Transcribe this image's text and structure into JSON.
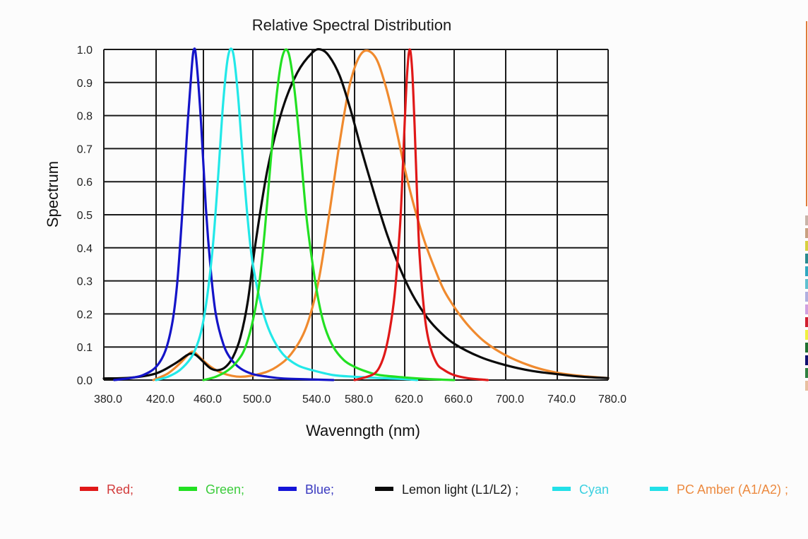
{
  "chart_data": {
    "type": "line",
    "title": "Relative Spectral Distribution",
    "xlabel": "Wavenngth (nm)",
    "ylabel": "Spectrum",
    "xlim": [
      380,
      780
    ],
    "ylim": [
      0,
      1.0
    ],
    "grid": true,
    "legend_placement": "bottom",
    "x_ticks": [
      "380.0",
      "420.0",
      "460.0",
      "500.0",
      "540.0",
      "580.0",
      "620.0",
      "660.0",
      "700.0",
      "740.0",
      "780.0"
    ],
    "y_ticks": [
      "0.0",
      "0.1",
      "0.2",
      "0.3",
      "0.4",
      "0.5",
      "0.6",
      "0.7",
      "0.8",
      "0.9",
      "1.0"
    ],
    "series": [
      {
        "name": "Red",
        "legend_label": "Red;",
        "color": "#e01818",
        "legend_swatch": "#e01818",
        "label_color": "#d23a3a",
        "x": [
          580,
          590,
          596,
          600,
          604,
          608,
          612,
          616,
          618,
          620,
          622,
          624,
          626,
          628,
          630,
          632,
          636,
          640,
          646,
          652,
          660,
          670,
          680,
          686
        ],
        "y": [
          0.0,
          0.01,
          0.02,
          0.04,
          0.08,
          0.15,
          0.26,
          0.45,
          0.6,
          0.78,
          0.93,
          1.0,
          0.94,
          0.77,
          0.56,
          0.38,
          0.2,
          0.11,
          0.05,
          0.03,
          0.015,
          0.006,
          0.002,
          0.0
        ]
      },
      {
        "name": "Green",
        "legend_label": "Green;",
        "color": "#22e022",
        "legend_swatch": "#22e022",
        "label_color": "#3ccc3c",
        "x": [
          460,
          470,
          480,
          488,
          494,
          500,
          504,
          508,
          512,
          516,
          520,
          524,
          528,
          532,
          536,
          540,
          546,
          552,
          560,
          570,
          580,
          590,
          600,
          620,
          640,
          660
        ],
        "y": [
          0.0,
          0.01,
          0.03,
          0.06,
          0.1,
          0.18,
          0.28,
          0.45,
          0.66,
          0.86,
          0.98,
          0.99,
          0.88,
          0.7,
          0.5,
          0.36,
          0.24,
          0.16,
          0.1,
          0.06,
          0.04,
          0.025,
          0.015,
          0.008,
          0.003,
          0.0
        ]
      },
      {
        "name": "Blue",
        "legend_label": "Blue;",
        "color": "#1414c8",
        "legend_swatch": "#1414d8",
        "label_color": "#3a3ac0",
        "x": [
          388,
          400,
          410,
          420,
          428,
          434,
          438,
          442,
          446,
          450,
          452,
          454,
          458,
          462,
          466,
          470,
          476,
          482,
          490,
          500,
          510,
          520,
          540,
          560
        ],
        "y": [
          0.0,
          0.006,
          0.015,
          0.04,
          0.09,
          0.18,
          0.3,
          0.5,
          0.74,
          0.94,
          1.0,
          0.97,
          0.78,
          0.52,
          0.33,
          0.2,
          0.11,
          0.065,
          0.035,
          0.018,
          0.01,
          0.005,
          0.002,
          0.0
        ]
      },
      {
        "name": "Lemon light (L1/L2)",
        "legend_label": "Lemon light (L1/L2) ;",
        "color": "#0a0a0a",
        "legend_swatch": "#0a0a0a",
        "label_color": "#1a1a1a",
        "x": [
          380,
          400,
          420,
          436,
          446,
          450,
          454,
          460,
          466,
          472,
          478,
          484,
          490,
          496,
          502,
          510,
          520,
          530,
          540,
          548,
          556,
          566,
          576,
          586,
          596,
          606,
          616,
          626,
          636,
          646,
          660,
          680,
          700,
          720,
          740,
          760,
          780
        ],
        "y": [
          0.005,
          0.007,
          0.02,
          0.05,
          0.075,
          0.08,
          0.075,
          0.055,
          0.035,
          0.03,
          0.04,
          0.07,
          0.13,
          0.24,
          0.42,
          0.64,
          0.82,
          0.93,
          0.99,
          1.0,
          0.98,
          0.92,
          0.82,
          0.69,
          0.56,
          0.44,
          0.34,
          0.26,
          0.2,
          0.155,
          0.11,
          0.07,
          0.045,
          0.028,
          0.018,
          0.01,
          0.006
        ]
      },
      {
        "name": "Cyan",
        "legend_label": "Cyan",
        "color": "#22e8e8",
        "legend_swatch": "#22e0e8",
        "label_color": "#3ad0e0",
        "x": [
          420,
          430,
          440,
          450,
          456,
          460,
          464,
          468,
          472,
          476,
          480,
          484,
          488,
          492,
          496,
          500,
          506,
          512,
          520,
          530,
          540,
          560,
          580,
          600,
          620,
          630
        ],
        "y": [
          0.0,
          0.01,
          0.03,
          0.07,
          0.12,
          0.18,
          0.28,
          0.42,
          0.62,
          0.84,
          0.98,
          0.99,
          0.86,
          0.66,
          0.48,
          0.35,
          0.22,
          0.14,
          0.08,
          0.045,
          0.03,
          0.015,
          0.01,
          0.006,
          0.003,
          0.0
        ]
      },
      {
        "name": "PC Amber (A1/A2)",
        "legend_label": "PC Amber (A1/A2) ;",
        "color": "#f08a2e",
        "legend_swatch": "#22e0e8",
        "label_color": "#ec8a40",
        "x": [
          418,
          430,
          440,
          448,
          452,
          458,
          466,
          476,
          490,
          506,
          516,
          526,
          536,
          546,
          556,
          566,
          576,
          586,
          596,
          604,
          612,
          620,
          628,
          636,
          644,
          652,
          662,
          672,
          684,
          700,
          720,
          740,
          760,
          780
        ],
        "y": [
          0.0,
          0.02,
          0.05,
          0.08,
          0.085,
          0.065,
          0.04,
          0.02,
          0.01,
          0.02,
          0.04,
          0.08,
          0.16,
          0.3,
          0.5,
          0.72,
          0.9,
          0.99,
          0.98,
          0.9,
          0.78,
          0.64,
          0.52,
          0.42,
          0.34,
          0.27,
          0.21,
          0.16,
          0.115,
          0.075,
          0.042,
          0.022,
          0.012,
          0.006
        ]
      }
    ]
  },
  "edge_colors": [
    "#c8b4a8",
    "#c8a080",
    "#d8d040",
    "#2a8a90",
    "#30a8c0",
    "#60c0d0",
    "#b0b0e0",
    "#d0a0e0",
    "#d02030",
    "#f0f040",
    "#207030",
    "#101070",
    "#308040",
    "#e8c0a0"
  ]
}
